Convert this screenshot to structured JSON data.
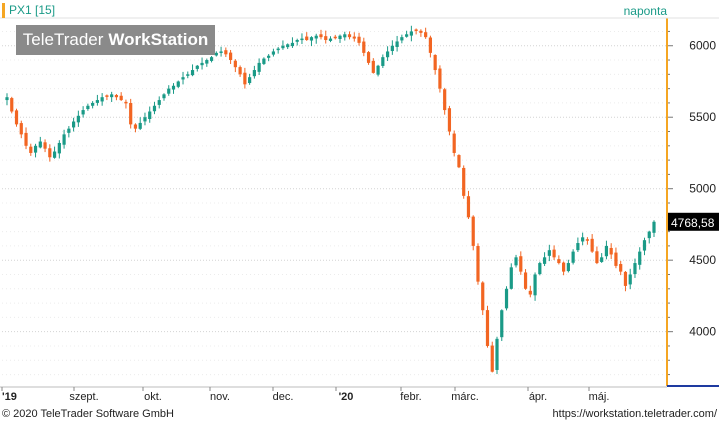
{
  "legend": {
    "symbol": "PX1 [15]"
  },
  "period": "naponta",
  "brand": {
    "prefix": "TeleTrader",
    "bold": "WorkStation"
  },
  "footer": {
    "copyright": "© 2020 TeleTrader Software GmbH",
    "url": "https://workstation.teletrader.com/"
  },
  "colors": {
    "up": "#1a9a87",
    "down": "#f26522",
    "accent": "#f5a623",
    "axis_line": "#1e3aa0",
    "grid": "#d9d9d9"
  },
  "chart_data": {
    "type": "candlestick",
    "series_name": "PX1 [15]",
    "ylim": [
      3620,
      6180
    ],
    "yticks": [
      4000,
      4500,
      5000,
      5500,
      6000
    ],
    "ytick_labels": [
      "4000",
      "4500",
      "5000",
      "5500",
      "6000"
    ],
    "xlabels": [
      "'19",
      "szept.",
      "okt.",
      "nov.",
      "dec.",
      "'20",
      "febr.",
      "márc.",
      "ápr.",
      "máj."
    ],
    "last_value_label": "4768,58",
    "last_value": 4768.58,
    "grid": true,
    "closes": [
      5640,
      5540,
      5450,
      5380,
      5300,
      5250,
      5300,
      5330,
      5280,
      5220,
      5260,
      5320,
      5380,
      5420,
      5470,
      5510,
      5550,
      5580,
      5600,
      5620,
      5640,
      5650,
      5660,
      5640,
      5620,
      5600,
      5450,
      5420,
      5460,
      5500,
      5540,
      5580,
      5620,
      5660,
      5700,
      5720,
      5750,
      5780,
      5800,
      5830,
      5860,
      5880,
      5900,
      5920,
      5950,
      5960,
      5940,
      5900,
      5850,
      5800,
      5730,
      5780,
      5830,
      5880,
      5910,
      5930,
      5960,
      5980,
      6000,
      6010,
      6020,
      6040,
      6050,
      6040,
      6060,
      6070,
      6060,
      6040,
      6050,
      6060,
      6070,
      6080,
      6060,
      6050,
      6020,
      5950,
      5880,
      5810,
      5860,
      5920,
      5960,
      6000,
      6030,
      6060,
      6080,
      6100,
      6110,
      6090,
      6060,
      5950,
      5830,
      5700,
      5550,
      5400,
      5250,
      5150,
      4950,
      4800,
      4600,
      4350,
      4150,
      3900,
      3720,
      3950,
      4150,
      4300,
      4450,
      4520,
      4420,
      4300,
      4260,
      4400,
      4480,
      4520,
      4570,
      4520,
      4480,
      4420,
      4480,
      4560,
      4620,
      4660,
      4640,
      4560,
      4480,
      4520,
      4600,
      4540,
      4460,
      4420,
      4320,
      4400,
      4480,
      4560,
      4640,
      4700,
      4768.58
    ]
  }
}
